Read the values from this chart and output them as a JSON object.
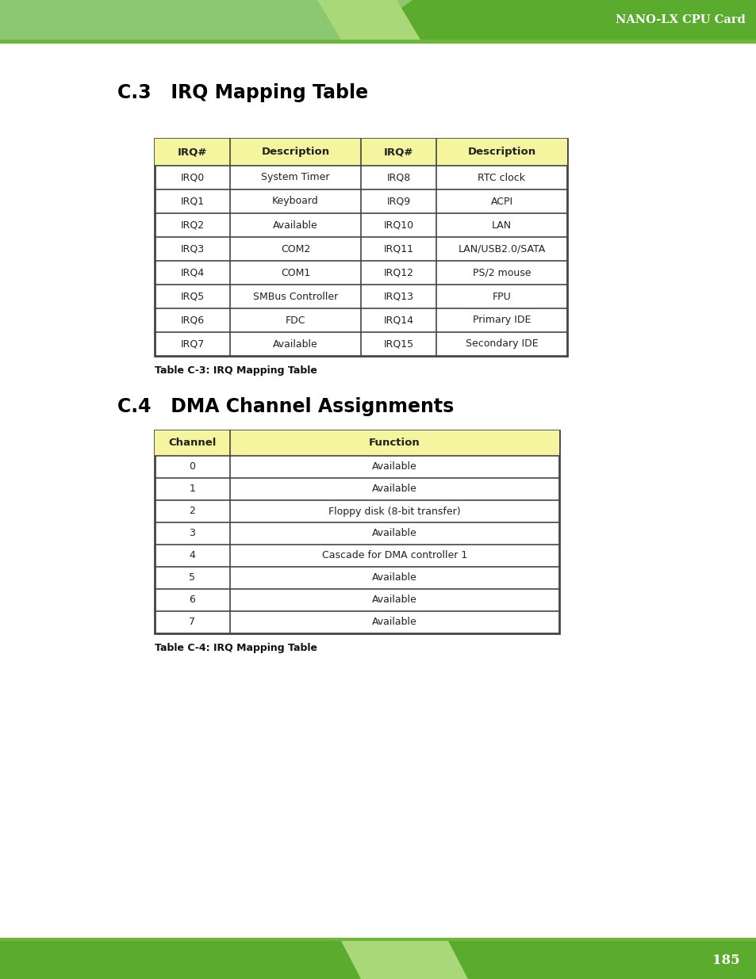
{
  "page_title": "NANO-LX CPU Card",
  "page_number": "185",
  "section1_title": "C.3   IRQ Mapping Table",
  "section2_title": "C.4   DMA Channel Assignments",
  "table1_caption": "Table C-3: IRQ Mapping Table",
  "table2_caption": "Table C-4: IRQ Mapping Table",
  "table1_header": [
    "IRQ#",
    "Description",
    "IRQ#",
    "Description"
  ],
  "table1_header_bg": "#f5f5a0",
  "table1_rows": [
    [
      "IRQ0",
      "System Timer",
      "IRQ8",
      "RTC clock"
    ],
    [
      "IRQ1",
      "Keyboard",
      "IRQ9",
      "ACPI"
    ],
    [
      "IRQ2",
      "Available",
      "IRQ10",
      "LAN"
    ],
    [
      "IRQ3",
      "COM2",
      "IRQ11",
      "LAN/USB2.0/SATA"
    ],
    [
      "IRQ4",
      "COM1",
      "IRQ12",
      "PS/2 mouse"
    ],
    [
      "IRQ5",
      "SMBus Controller",
      "IRQ13",
      "FPU"
    ],
    [
      "IRQ6",
      "FDC",
      "IRQ14",
      "Primary IDE"
    ],
    [
      "IRQ7",
      "Available",
      "IRQ15",
      "Secondary IDE"
    ]
  ],
  "table2_header": [
    "Channel",
    "Function"
  ],
  "table2_header_bg": "#f5f5a0",
  "table2_rows": [
    [
      "0",
      "Available"
    ],
    [
      "1",
      "Available"
    ],
    [
      "2",
      "Floppy disk (8-bit transfer)"
    ],
    [
      "3",
      "Available"
    ],
    [
      "4",
      "Cascade for DMA controller 1"
    ],
    [
      "5",
      "Available"
    ],
    [
      "6",
      "Available"
    ],
    [
      "7",
      "Available"
    ]
  ],
  "table_border_color": "#444444",
  "table_bg_white": "#ffffff",
  "text_color": "#222222",
  "section_title_color": "#000000",
  "caption_color": "#111111",
  "header_light_green": "#8dc870",
  "header_mid_green": "#a8d878",
  "header_dark_green": "#5aab2e",
  "header_line_green": "#6aba38",
  "footer_dark_green": "#5aab2e",
  "footer_light_green": "#8dc870",
  "footer_mid_green": "#a8d878"
}
